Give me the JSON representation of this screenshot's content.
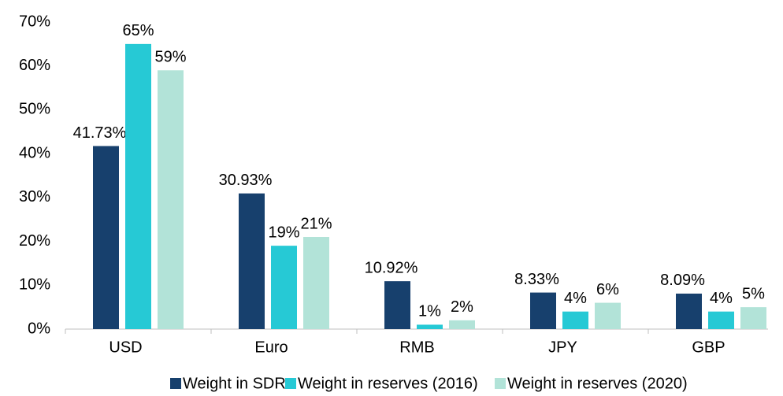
{
  "chart_data": {
    "type": "bar",
    "categories": [
      "USD",
      "Euro",
      "RMB",
      "JPY",
      "GBP"
    ],
    "series": [
      {
        "name": "Weight in SDR",
        "color": "#17406d",
        "values": [
          41.73,
          30.93,
          10.92,
          8.33,
          8.09
        ],
        "value_labels": [
          "41.73%",
          "30.93%",
          "10.92%",
          "8.33%",
          "8.09%"
        ]
      },
      {
        "name": "Weight in reserves (2016)",
        "color": "#26c9d5",
        "values": [
          65,
          19,
          1,
          4,
          4
        ],
        "value_labels": [
          "65%",
          "19%",
          "1%",
          "4%",
          "4%"
        ]
      },
      {
        "name": "Weight in reserves (2020)",
        "color": "#b2e3d8",
        "values": [
          59,
          21,
          2,
          6,
          5
        ],
        "value_labels": [
          "59%",
          "21%",
          "2%",
          "6%",
          "5%"
        ]
      }
    ],
    "ylim": [
      0,
      70
    ],
    "yticks": [
      {
        "value": 0,
        "label": "0%"
      },
      {
        "value": 10,
        "label": "10%"
      },
      {
        "value": 20,
        "label": "20%"
      },
      {
        "value": 30,
        "label": "30%"
      },
      {
        "value": 40,
        "label": "40%"
      },
      {
        "value": 50,
        "label": "50%"
      },
      {
        "value": 60,
        "label": "60%"
      },
      {
        "value": 70,
        "label": "70%"
      }
    ],
    "grid": false,
    "legend": "bottom"
  }
}
